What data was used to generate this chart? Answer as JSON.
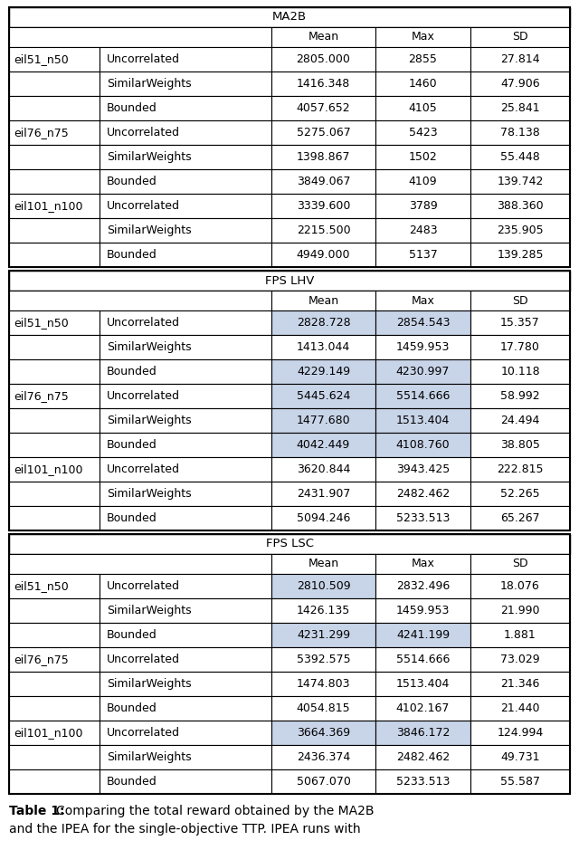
{
  "sections": [
    {
      "title": "MA2B",
      "rows": [
        [
          "",
          "",
          "Mean",
          "Max",
          "SD"
        ],
        [
          "eil51_n50",
          "Uncorrelated",
          "2805.000",
          "2855",
          "27.814",
          false,
          false
        ],
        [
          "",
          "SimilarWeights",
          "1416.348",
          "1460",
          "47.906",
          false,
          false
        ],
        [
          "",
          "Bounded",
          "4057.652",
          "4105",
          "25.841",
          false,
          false
        ],
        [
          "eil76_n75",
          "Uncorrelated",
          "5275.067",
          "5423",
          "78.138",
          false,
          false
        ],
        [
          "",
          "SimilarWeights",
          "1398.867",
          "1502",
          "55.448",
          false,
          false
        ],
        [
          "",
          "Bounded",
          "3849.067",
          "4109",
          "139.742",
          false,
          false
        ],
        [
          "eil101_n100",
          "Uncorrelated",
          "3339.600",
          "3789",
          "388.360",
          false,
          false
        ],
        [
          "",
          "SimilarWeights",
          "2215.500",
          "2483",
          "235.905",
          false,
          false
        ],
        [
          "",
          "Bounded",
          "4949.000",
          "5137",
          "139.285",
          false,
          false
        ]
      ]
    },
    {
      "title": "FPS LHV",
      "rows": [
        [
          "",
          "",
          "Mean",
          "Max",
          "SD"
        ],
        [
          "eil51_n50",
          "Uncorrelated",
          "2828.728",
          "2854.543",
          "15.357",
          true,
          true
        ],
        [
          "",
          "SimilarWeights",
          "1413.044",
          "1459.953",
          "17.780",
          false,
          false
        ],
        [
          "",
          "Bounded",
          "4229.149",
          "4230.997",
          "10.118",
          true,
          true
        ],
        [
          "eil76_n75",
          "Uncorrelated",
          "5445.624",
          "5514.666",
          "58.992",
          true,
          true
        ],
        [
          "",
          "SimilarWeights",
          "1477.680",
          "1513.404",
          "24.494",
          true,
          true
        ],
        [
          "",
          "Bounded",
          "4042.449",
          "4108.760",
          "38.805",
          true,
          true
        ],
        [
          "eil101_n100",
          "Uncorrelated",
          "3620.844",
          "3943.425",
          "222.815",
          false,
          false
        ],
        [
          "",
          "SimilarWeights",
          "2431.907",
          "2482.462",
          "52.265",
          false,
          false
        ],
        [
          "",
          "Bounded",
          "5094.246",
          "5233.513",
          "65.267",
          false,
          false
        ]
      ]
    },
    {
      "title": "FPS LSC",
      "rows": [
        [
          "",
          "",
          "Mean",
          "Max",
          "SD"
        ],
        [
          "eil51_n50",
          "Uncorrelated",
          "2810.509",
          "2832.496",
          "18.076",
          true,
          false
        ],
        [
          "",
          "SimilarWeights",
          "1426.135",
          "1459.953",
          "21.990",
          false,
          false
        ],
        [
          "",
          "Bounded",
          "4231.299",
          "4241.199",
          "1.881",
          true,
          true
        ],
        [
          "eil76_n75",
          "Uncorrelated",
          "5392.575",
          "5514.666",
          "73.029",
          false,
          false
        ],
        [
          "",
          "SimilarWeights",
          "1474.803",
          "1513.404",
          "21.346",
          false,
          false
        ],
        [
          "",
          "Bounded",
          "4054.815",
          "4102.167",
          "21.440",
          false,
          false
        ],
        [
          "eil101_n100",
          "Uncorrelated",
          "3664.369",
          "3846.172",
          "124.994",
          true,
          true
        ],
        [
          "",
          "SimilarWeights",
          "2436.374",
          "2482.462",
          "49.731",
          false,
          false
        ],
        [
          "",
          "Bounded",
          "5067.070",
          "5233.513",
          "55.587",
          false,
          false
        ]
      ]
    }
  ],
  "highlight_color": "#C8D4E8",
  "background_color": "#FFFFFF",
  "border_color": "#000000",
  "font_size": 9,
  "title_font_size": 9.5,
  "caption_bold": "Table 1: ",
  "caption_normal": "Comparing the total reward obtained by the MA2B",
  "caption_line2": "and the IPEA for the single-objective TTP. IPEA runs with"
}
